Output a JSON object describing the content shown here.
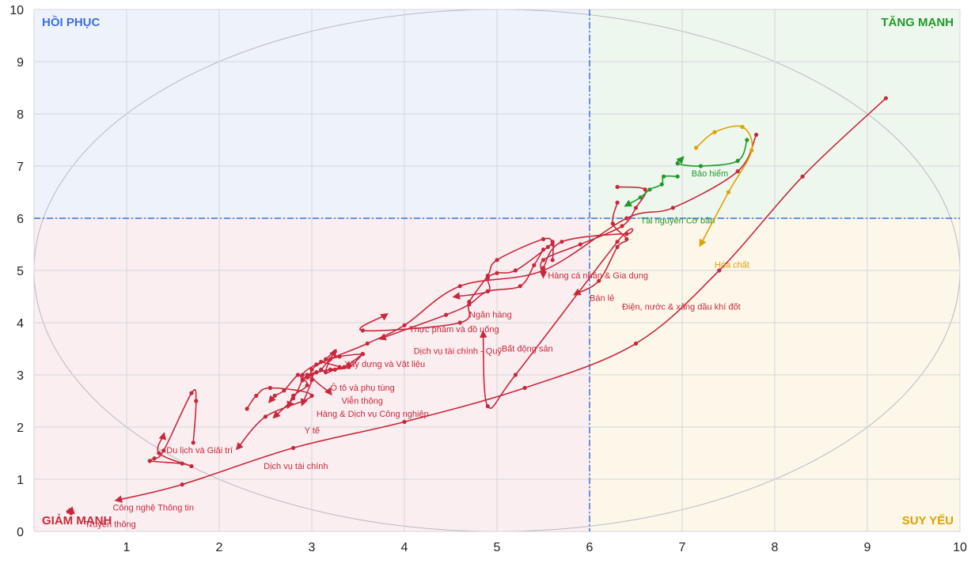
{
  "chart_data": {
    "type": "scatter",
    "title": "",
    "xlabel": "",
    "ylabel": "",
    "xlim": [
      0,
      10
    ],
    "ylim": [
      0,
      10
    ],
    "x_ticks": [
      "1",
      "2",
      "3",
      "4",
      "5",
      "6",
      "7",
      "8",
      "9",
      "10"
    ],
    "y_ticks": [
      "0",
      "1",
      "2",
      "3",
      "4",
      "5",
      "6",
      "7",
      "8",
      "9",
      "10"
    ],
    "grid": true,
    "threshold_x": 6,
    "threshold_y": 6,
    "quadrants": {
      "top_left": {
        "label": "HỒI PHỤC",
        "color": "#3b6fe0"
      },
      "top_right": {
        "label": "TĂNG MẠNH",
        "color": "#1f9a2a"
      },
      "bottom_left": {
        "label": "GIẢM MẠNH",
        "color": "#c8283c"
      },
      "bottom_right": {
        "label": "SUY YẾU",
        "color": "#e0a000"
      }
    },
    "series": [
      {
        "name": "Truyền thông",
        "color": "#c8283c",
        "points": [
          [
            0.4,
            0.35
          ],
          [
            0.37,
            0.38
          ],
          [
            0.39,
            0.41
          ],
          [
            0.42,
            0.37
          ]
        ]
      },
      {
        "name": "Công nghệ Thông tin",
        "color": "#c8283c",
        "points": [
          [
            9.2,
            8.3
          ],
          [
            8.3,
            6.8
          ],
          [
            7.4,
            5.0
          ],
          [
            6.5,
            3.6
          ],
          [
            5.3,
            2.75
          ],
          [
            4.0,
            2.1
          ],
          [
            2.8,
            1.6
          ],
          [
            1.6,
            0.9
          ],
          [
            0.9,
            0.6
          ]
        ]
      },
      {
        "name": "Du lịch và Giải trí",
        "color": "#c8283c",
        "points": [
          [
            1.72,
            1.7
          ],
          [
            1.75,
            2.5
          ],
          [
            1.7,
            2.65
          ],
          [
            1.4,
            1.55
          ],
          [
            1.3,
            1.4
          ],
          [
            1.25,
            1.35
          ],
          [
            1.6,
            1.3
          ],
          [
            1.7,
            1.25
          ],
          [
            1.35,
            1.5
          ],
          [
            1.4,
            1.85
          ]
        ]
      },
      {
        "name": "Dịch vụ tài chính",
        "color": "#c8283c",
        "points": [
          [
            2.3,
            2.35
          ],
          [
            2.4,
            2.6
          ],
          [
            2.55,
            2.75
          ],
          [
            3.0,
            2.6
          ],
          [
            2.5,
            2.2
          ],
          [
            2.2,
            1.6
          ]
        ]
      },
      {
        "name": "Y tế",
        "color": "#c8283c",
        "points": [
          [
            3.15,
            3.3
          ],
          [
            3.25,
            3.45
          ],
          [
            3.1,
            3.1
          ],
          [
            3.0,
            3.0
          ],
          [
            2.95,
            2.95
          ],
          [
            2.9,
            2.9
          ],
          [
            2.8,
            2.55
          ],
          [
            2.6,
            2.2
          ]
        ]
      },
      {
        "name": "Hàng & Dịch vụ Công nghiệp",
        "color": "#c8283c",
        "points": [
          [
            3.55,
            3.4
          ],
          [
            3.4,
            3.15
          ],
          [
            3.2,
            3.1
          ],
          [
            3.05,
            3.05
          ],
          [
            2.95,
            3.0
          ],
          [
            2.9,
            2.9
          ],
          [
            2.85,
            3.0
          ],
          [
            2.7,
            2.7
          ],
          [
            2.6,
            2.6
          ],
          [
            2.55,
            2.5
          ]
        ]
      },
      {
        "name": "Ô tô và phụ tùng",
        "color": "#c8283c",
        "points": [
          [
            3.55,
            3.4
          ],
          [
            3.3,
            3.35
          ],
          [
            3.05,
            3.2
          ],
          [
            2.9,
            3.0
          ],
          [
            2.95,
            2.8
          ],
          [
            2.8,
            2.6
          ],
          [
            2.75,
            2.4
          ]
        ]
      },
      {
        "name": "Viễn thông",
        "color": "#c8283c",
        "points": [
          [
            3.1,
            3.25
          ],
          [
            3.3,
            3.15
          ],
          [
            3.2,
            3.1
          ],
          [
            3.05,
            3.05
          ],
          [
            2.95,
            2.95
          ],
          [
            3.0,
            2.9
          ],
          [
            2.9,
            2.45
          ]
        ]
      },
      {
        "name": "Xây dựng và Vật liệu",
        "color": "#c8283c",
        "points": [
          [
            3.55,
            3.4
          ],
          [
            3.4,
            3.2
          ],
          [
            3.35,
            3.15
          ],
          [
            3.25,
            3.1
          ],
          [
            3.15,
            3.05
          ],
          [
            3.2,
            3.3
          ],
          [
            3.25,
            3.45
          ]
        ]
      },
      {
        "name": "Bất động sản",
        "color": "#c8283c",
        "points": [
          [
            7.8,
            7.6
          ],
          [
            7.6,
            6.9
          ],
          [
            6.9,
            6.2
          ],
          [
            6.4,
            6.0
          ],
          [
            5.5,
            5.0
          ],
          [
            4.6,
            4.7
          ],
          [
            4.0,
            3.95
          ],
          [
            3.6,
            3.6
          ],
          [
            3.0,
            3.1
          ],
          [
            3.2,
            2.65
          ]
        ]
      },
      {
        "name": "Thực phẩm và đồ uống",
        "color": "#c8283c",
        "points": [
          [
            5.6,
            5.2
          ],
          [
            5.6,
            5.5
          ],
          [
            5.5,
            5.6
          ],
          [
            5.0,
            5.2
          ],
          [
            4.9,
            4.9
          ],
          [
            4.7,
            4.4
          ],
          [
            4.6,
            4.0
          ],
          [
            3.55,
            3.85
          ],
          [
            3.8,
            4.15
          ]
        ]
      },
      {
        "name": "Dịch vụ tài chính - Quỹ",
        "color": "#c8283c",
        "points": [
          [
            5.5,
            5.4
          ],
          [
            5.4,
            5.1
          ],
          [
            5.25,
            4.7
          ],
          [
            4.9,
            4.6
          ],
          [
            4.7,
            4.35
          ],
          [
            4.45,
            4.15
          ],
          [
            3.75,
            3.7
          ]
        ]
      },
      {
        "name": "Ngân hàng",
        "color": "#c8283c",
        "points": [
          [
            5.6,
            5.55
          ],
          [
            5.55,
            5.45
          ],
          [
            5.2,
            5.0
          ],
          [
            5.0,
            4.95
          ],
          [
            4.9,
            4.85
          ],
          [
            4.9,
            4.6
          ],
          [
            4.55,
            4.5
          ]
        ]
      },
      {
        "name": "Hàng cá nhân & Gia dụng",
        "color": "#c8283c",
        "points": [
          [
            6.3,
            6.6
          ],
          [
            6.6,
            6.55
          ],
          [
            6.5,
            6.2
          ],
          [
            6.35,
            5.85
          ],
          [
            5.9,
            5.5
          ],
          [
            5.5,
            5.2
          ],
          [
            5.5,
            4.9
          ]
        ]
      },
      {
        "name": "Bán lẻ",
        "color": "#c8283c",
        "points": [
          [
            6.3,
            6.3
          ],
          [
            6.25,
            5.9
          ],
          [
            6.4,
            5.6
          ],
          [
            6.3,
            5.45
          ],
          [
            6.1,
            4.8
          ],
          [
            5.85,
            4.55
          ]
        ]
      },
      {
        "name": "Điện, nước & xăng dầu khí đốt",
        "color": "#c8283c",
        "points": [
          [
            5.5,
            5.05
          ],
          [
            5.7,
            5.55
          ],
          [
            6.4,
            5.7
          ],
          [
            6.3,
            5.55
          ],
          [
            5.2,
            3.0
          ],
          [
            4.9,
            2.4
          ],
          [
            4.85,
            3.8
          ]
        ]
      },
      {
        "name": "Bảo hiểm",
        "color": "#1f9a2a",
        "points": [
          [
            7.7,
            7.5
          ],
          [
            7.6,
            7.1
          ],
          [
            7.2,
            7.0
          ],
          [
            6.95,
            7.05
          ],
          [
            7.0,
            7.15
          ]
        ]
      },
      {
        "name": "Tài nguyên Cơ bản",
        "color": "#1f9a2a",
        "points": [
          [
            6.95,
            6.8
          ],
          [
            6.8,
            6.8
          ],
          [
            6.78,
            6.65
          ],
          [
            6.65,
            6.55
          ],
          [
            6.55,
            6.4
          ],
          [
            6.4,
            6.25
          ]
        ]
      },
      {
        "name": "Hóa chất",
        "color": "#e0a000",
        "points": [
          [
            7.15,
            7.35
          ],
          [
            7.35,
            7.65
          ],
          [
            7.65,
            7.75
          ],
          [
            7.75,
            7.3
          ],
          [
            7.5,
            6.5
          ],
          [
            7.2,
            5.5
          ]
        ]
      }
    ],
    "labels": [
      {
        "text": "Công nghệ Thông tin",
        "x": 0.85,
        "y": 0.4
      },
      {
        "text": "Truyền thông",
        "x": 0.55,
        "y": 0.08
      },
      {
        "text": "Du lịch và Giải trí",
        "x": 1.43,
        "y": 1.5
      },
      {
        "text": "Dịch vụ tài chính",
        "x": 2.48,
        "y": 1.2
      },
      {
        "text": "Y tế",
        "x": 2.92,
        "y": 1.88
      },
      {
        "text": "Hàng & Dịch vụ Công nghiệp",
        "x": 3.05,
        "y": 2.2
      },
      {
        "text": "Viễn thông",
        "x": 3.32,
        "y": 2.45
      },
      {
        "text": "Ô tô và phụ tùng",
        "x": 3.2,
        "y": 2.7
      },
      {
        "text": "Xây dựng và Vật liệu",
        "x": 3.35,
        "y": 3.15
      },
      {
        "text": "Thực phẩm và đồ uống",
        "x": 4.05,
        "y": 3.82
      },
      {
        "text": "Dịch vụ tài chính - Quỹ",
        "x": 4.1,
        "y": 3.4
      },
      {
        "text": "Bất động sản",
        "x": 5.05,
        "y": 3.45
      },
      {
        "text": "Ngân hàng",
        "x": 4.7,
        "y": 4.1
      },
      {
        "text": "Hàng cá nhân & Gia dụng",
        "x": 5.55,
        "y": 4.85
      },
      {
        "text": "Bán lẻ",
        "x": 6.0,
        "y": 4.42
      },
      {
        "text": "Điện, nước & xăng dầu khí đốt",
        "x": 6.35,
        "y": 4.25
      },
      {
        "text": "Bảo hiểm",
        "x": 7.1,
        "y": 6.8
      },
      {
        "text": "Tài nguyên Cơ bản",
        "x": 6.55,
        "y": 5.9
      },
      {
        "text": "Hóa chất",
        "x": 7.35,
        "y": 5.05
      }
    ]
  }
}
